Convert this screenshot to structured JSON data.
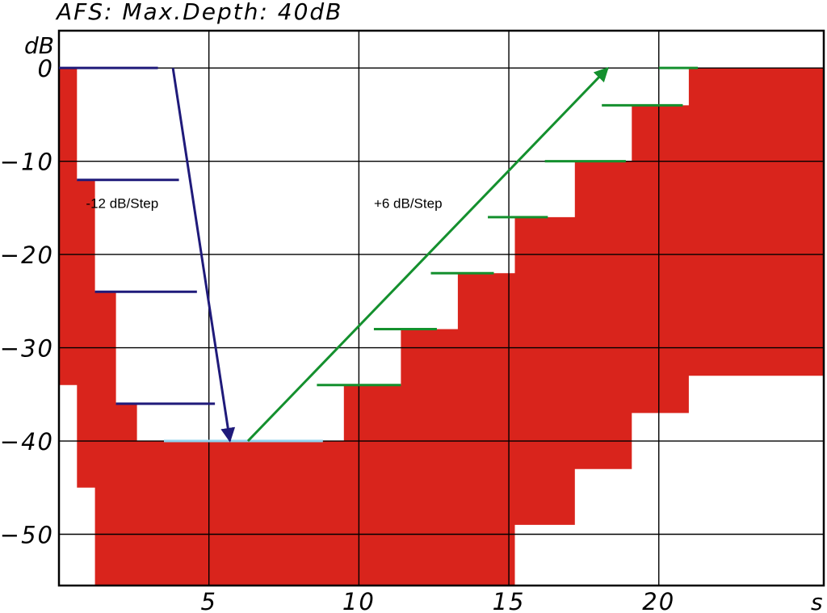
{
  "chart_data": {
    "type": "area",
    "title": "AFS: Max.Depth: 40dB",
    "ylabel": "dB",
    "xlabel": "s",
    "xlim": [
      0,
      25.5
    ],
    "ylim": [
      -55.5,
      4
    ],
    "grid": true,
    "x_ticks": [
      5,
      10,
      15,
      20
    ],
    "x_tick_labels": [
      "5",
      "10",
      "15",
      "20"
    ],
    "y_ticks": [
      0,
      -10,
      -20,
      -30,
      -40,
      -50
    ],
    "y_tick_labels": [
      "0",
      "−10",
      "−20",
      "−30",
      "−40",
      "−50"
    ],
    "colors": {
      "signal": "#d9241c",
      "attenuation": "#1f1a7a",
      "recovery": "#14902e",
      "floor": "#8fd3ee",
      "grid": "#000000"
    },
    "signal_envelope": {
      "x": [
        0,
        0.6,
        0.6,
        1.2,
        1.2,
        1.9,
        1.9,
        2.6,
        2.6,
        9.5,
        9.5,
        11.4,
        11.4,
        13.3,
        13.3,
        15.2,
        15.2,
        17.2,
        17.2,
        19.1,
        19.1,
        21.0,
        21.0,
        25.5
      ],
      "top": [
        0,
        0,
        -12,
        -12,
        -24,
        -24,
        -36,
        -36,
        -40,
        -40,
        -34,
        -34,
        -28,
        -28,
        -22,
        -22,
        -16,
        -16,
        -10,
        -10,
        -4,
        -4,
        0,
        0
      ],
      "bottom": [
        -34,
        -34,
        -45,
        -45,
        -55.5,
        -55.5,
        -55.5,
        -55.5,
        -55.5,
        -55.5,
        -55.5,
        -55.5,
        -55.5,
        -55.5,
        -55.5,
        -55.5,
        -49,
        -49,
        -43,
        -43,
        -37,
        -37,
        -33,
        -33
      ]
    },
    "series": [
      {
        "name": "-12 dB/Step",
        "steps": [
          {
            "x": [
              0,
              3.3
            ],
            "y": 0
          },
          {
            "x": [
              0.6,
              4.0
            ],
            "y": -12
          },
          {
            "x": [
              1.2,
              4.6
            ],
            "y": -24
          },
          {
            "x": [
              1.9,
              5.2
            ],
            "y": -36
          }
        ],
        "arrow": {
          "from": [
            3.8,
            0
          ],
          "to": [
            5.7,
            -40
          ]
        },
        "label_at": [
          0.9,
          -15
        ]
      },
      {
        "name": "+6 dB/Step",
        "steps": [
          {
            "x": [
              8.6,
              11.4
            ],
            "y": -34
          },
          {
            "x": [
              10.5,
              12.6
            ],
            "y": -28
          },
          {
            "x": [
              12.4,
              14.5
            ],
            "y": -22
          },
          {
            "x": [
              14.3,
              16.3
            ],
            "y": -16
          },
          {
            "x": [
              16.2,
              18.9
            ],
            "y": -10
          },
          {
            "x": [
              18.1,
              20.8
            ],
            "y": -4
          },
          {
            "x": [
              20.0,
              21.3
            ],
            "y": 0
          }
        ],
        "arrow": {
          "from": [
            6.3,
            -40
          ],
          "to": [
            18.3,
            0
          ]
        },
        "label_at": [
          10.5,
          -15
        ]
      }
    ],
    "floor_line": {
      "x": [
        3.5,
        8.8
      ],
      "y": -40
    }
  }
}
